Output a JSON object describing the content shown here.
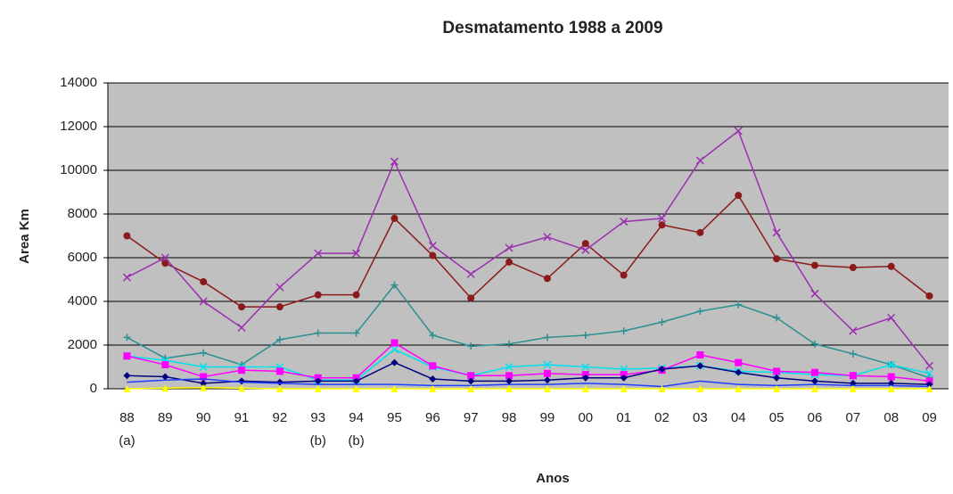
{
  "chart_data": {
    "type": "line",
    "title": "Desmatamento 1988 a 2009",
    "x_label": "Anos",
    "y_label": "Area Km",
    "categories": [
      "88",
      "89",
      "90",
      "91",
      "92",
      "93",
      "94",
      "95",
      "96",
      "97",
      "98",
      "99",
      "00",
      "01",
      "02",
      "03",
      "04",
      "05",
      "06",
      "07",
      "08",
      "09"
    ],
    "category_notes": [
      "(a)",
      null,
      null,
      null,
      null,
      "(b)",
      "(b)",
      null,
      null,
      null,
      null,
      null,
      null,
      null,
      null,
      null,
      null,
      null,
      null,
      null,
      null,
      null
    ],
    "ylim": [
      0,
      14000
    ],
    "yticks": [
      0,
      2000,
      4000,
      6000,
      8000,
      10000,
      12000,
      14000
    ],
    "grid": true,
    "plot_background": "#c0c0c0",
    "series": [
      {
        "color": "#8b1a1a",
        "marker": "circle",
        "values": [
          7000,
          5750,
          4900,
          3750,
          3750,
          4300,
          4300,
          7800,
          6100,
          4150,
          5800,
          5050,
          6650,
          5200,
          7500,
          7150,
          8850,
          5950,
          5650,
          5550,
          5600,
          4250
        ]
      },
      {
        "color": "#9b30b0",
        "marker": "x",
        "values": [
          5100,
          6000,
          4000,
          2800,
          4650,
          6200,
          6200,
          10400,
          6550,
          5250,
          6450,
          6950,
          6350,
          7650,
          7800,
          10450,
          11800,
          7150,
          4350,
          2650,
          3250,
          1050
        ]
      },
      {
        "color": "#2a9090",
        "marker": "plus",
        "values": [
          2350,
          1400,
          1650,
          1100,
          2250,
          2550,
          2550,
          4750,
          2450,
          1950,
          2050,
          2350,
          2450,
          2650,
          3050,
          3550,
          3850,
          3250,
          2050,
          1600,
          1100,
          500
        ]
      },
      {
        "color": "#00e0f0",
        "marker": "x",
        "values": [
          1500,
          1300,
          1000,
          1000,
          1000,
          400,
          400,
          1800,
          1000,
          600,
          1000,
          1100,
          1000,
          900,
          950,
          1050,
          800,
          750,
          650,
          600,
          1100,
          700
        ]
      },
      {
        "color": "#ff00ff",
        "marker": "square",
        "values": [
          1500,
          1100,
          550,
          850,
          800,
          500,
          500,
          2100,
          1050,
          600,
          600,
          700,
          650,
          650,
          850,
          1550,
          1200,
          800,
          750,
          600,
          550,
          350
        ]
      },
      {
        "color": "#000080",
        "marker": "diamond",
        "values": [
          600,
          550,
          250,
          350,
          300,
          350,
          350,
          1200,
          450,
          350,
          350,
          400,
          500,
          500,
          900,
          1050,
          750,
          500,
          350,
          250,
          250,
          200
        ]
      },
      {
        "color": "#1f3fff",
        "marker": "none",
        "values": [
          300,
          400,
          450,
          300,
          250,
          200,
          200,
          200,
          150,
          150,
          200,
          200,
          250,
          200,
          100,
          350,
          200,
          150,
          200,
          150,
          150,
          100
        ]
      },
      {
        "color": "#ffff00",
        "marker": "triangle",
        "values": [
          0,
          30,
          50,
          30,
          0,
          0,
          0,
          0,
          0,
          0,
          0,
          0,
          0,
          0,
          0,
          0,
          0,
          0,
          0,
          0,
          0,
          0
        ]
      }
    ]
  }
}
